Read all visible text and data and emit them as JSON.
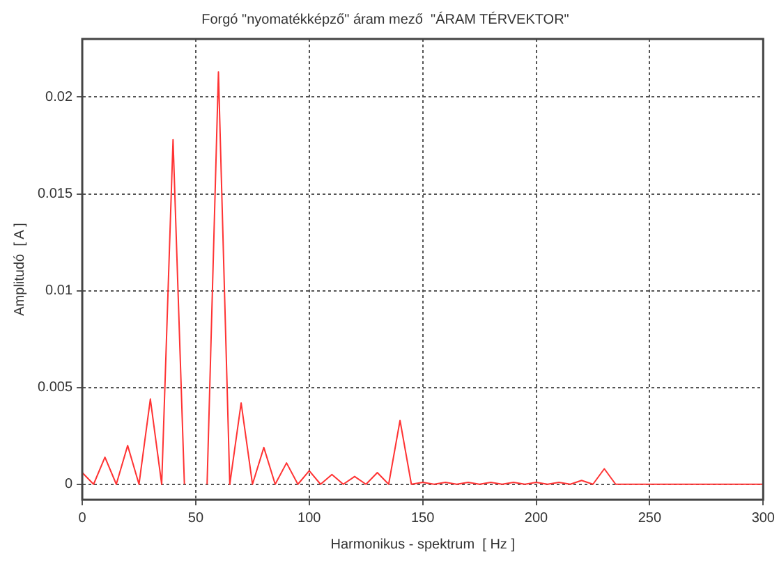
{
  "chart_data": {
    "type": "line",
    "title": "Forgó \"nyomatékképző\" áram mező  \"ÁRAM TÉRVEKTOR\"",
    "xlabel": "Harmonikus - spektrum  [ Hz ]",
    "ylabel": "Amplitudó  [ A ]",
    "x": [
      0,
      5,
      10,
      15,
      20,
      25,
      30,
      35,
      40,
      45,
      50,
      55,
      60,
      65,
      70,
      75,
      80,
      85,
      90,
      95,
      100,
      105,
      110,
      115,
      120,
      125,
      130,
      135,
      140,
      145,
      150,
      155,
      160,
      165,
      170,
      175,
      180,
      185,
      190,
      195,
      200,
      205,
      210,
      215,
      220,
      225,
      230,
      235,
      240,
      245,
      250,
      260,
      270,
      280,
      290,
      300
    ],
    "series": [
      {
        "color": "#ff3333",
        "values": [
          0.0006,
          0,
          0.0014,
          0,
          0.002,
          0,
          0.0044,
          0,
          0.0178,
          0,
          null,
          0,
          0.0213,
          0,
          0.0042,
          0,
          0.0019,
          0,
          0.0011,
          0,
          0.0007,
          0,
          0.0005,
          0,
          0.0004,
          0,
          0.0006,
          0,
          0.0033,
          0,
          0.0001,
          0,
          0.0001,
          0,
          0.0001,
          0,
          0.0001,
          0,
          0.0001,
          0,
          0.0001,
          0,
          0.0001,
          0,
          0.0002,
          0,
          0.0008,
          0,
          0,
          0,
          0,
          0,
          0,
          0,
          0,
          0
        ]
      }
    ],
    "xlim": [
      0,
      300
    ],
    "xticks": [
      0,
      50,
      100,
      150,
      200,
      250,
      300
    ],
    "ylim": [
      -0.0008,
      0.023
    ],
    "yticks": [
      0,
      0.005,
      0.01,
      0.015,
      0.02
    ],
    "grid": true,
    "legend": false,
    "marker": "none",
    "line_style": "solid"
  }
}
